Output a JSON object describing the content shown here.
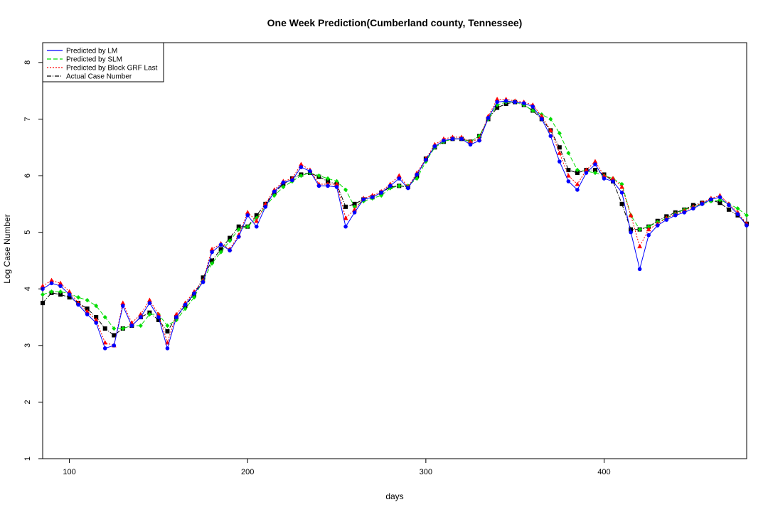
{
  "chart_data": {
    "type": "line",
    "title": "One Week Prediction(Cumberland county, Tennessee)",
    "xlabel": "days",
    "ylabel": "Log Case Number",
    "xlim": [
      85,
      480
    ],
    "ylim": [
      1,
      8.35
    ],
    "x_ticks": [
      "100",
      "200",
      "300",
      "400"
    ],
    "y_ticks": [
      "1",
      "2",
      "3",
      "4",
      "5",
      "6",
      "7",
      "8"
    ],
    "grid": false,
    "legend_position": "top-left",
    "legend": [
      {
        "label": "Predicted by LM",
        "color": "#0000ff",
        "style": "solid",
        "marker": "circle"
      },
      {
        "label": "Predicted by SLM",
        "color": "#00dd00",
        "style": "dashed",
        "marker": "diamond"
      },
      {
        "label": "Predicted by Block GRF Last",
        "color": "#ff0000",
        "style": "dotted",
        "marker": "triangle"
      },
      {
        "label": "Actual Case Number",
        "color": "#000000",
        "style": "dashdot",
        "marker": "square"
      }
    ],
    "series": [
      {
        "name": "Actual Case Number",
        "x": [
          85,
          90,
          95,
          100,
          105,
          110,
          115,
          120,
          125,
          130,
          135,
          140,
          145,
          150,
          155,
          160,
          165,
          170,
          175,
          180,
          185,
          190,
          195,
          200,
          205,
          210,
          215,
          220,
          225,
          230,
          235,
          240,
          245,
          250,
          255,
          260,
          265,
          270,
          275,
          280,
          285,
          290,
          295,
          300,
          305,
          310,
          315,
          320,
          325,
          330,
          335,
          340,
          345,
          350,
          355,
          360,
          365,
          370,
          375,
          380,
          385,
          390,
          395,
          400,
          405,
          410,
          415,
          420,
          425,
          430,
          435,
          440,
          445,
          450,
          455,
          460,
          465,
          470,
          475,
          480
        ],
        "values": [
          3.75,
          3.93,
          3.9,
          3.85,
          3.75,
          3.65,
          3.5,
          3.3,
          3.18,
          3.3,
          3.35,
          3.5,
          3.58,
          3.45,
          3.25,
          3.5,
          3.7,
          3.9,
          4.2,
          4.5,
          4.7,
          4.9,
          5.1,
          5.1,
          5.3,
          5.5,
          5.7,
          5.85,
          5.95,
          6.02,
          6.05,
          5.98,
          5.9,
          5.85,
          5.45,
          5.5,
          5.58,
          5.62,
          5.7,
          5.8,
          5.82,
          5.8,
          6.0,
          6.3,
          6.5,
          6.6,
          6.65,
          6.65,
          6.6,
          6.7,
          7.0,
          7.2,
          7.27,
          7.3,
          7.25,
          7.15,
          7.0,
          6.8,
          6.5,
          6.1,
          6.05,
          6.1,
          6.1,
          6.02,
          5.9,
          5.5,
          5.05,
          5.05,
          5.1,
          5.2,
          5.28,
          5.35,
          5.4,
          5.48,
          5.52,
          5.57,
          5.52,
          5.4,
          5.3,
          5.15
        ]
      },
      {
        "name": "Predicted by SLM",
        "x": [
          85,
          90,
          95,
          100,
          105,
          110,
          115,
          120,
          125,
          130,
          135,
          140,
          145,
          150,
          155,
          160,
          165,
          170,
          175,
          180,
          185,
          190,
          195,
          200,
          205,
          210,
          215,
          220,
          225,
          230,
          235,
          240,
          245,
          250,
          255,
          260,
          265,
          270,
          275,
          280,
          285,
          290,
          295,
          300,
          305,
          310,
          315,
          320,
          325,
          330,
          335,
          340,
          345,
          350,
          355,
          360,
          365,
          370,
          375,
          380,
          385,
          390,
          395,
          400,
          405,
          410,
          415,
          420,
          425,
          430,
          435,
          440,
          445,
          450,
          455,
          460,
          465,
          470,
          475,
          480
        ],
        "values": [
          3.9,
          3.95,
          3.95,
          3.92,
          3.85,
          3.8,
          3.7,
          3.5,
          3.3,
          3.3,
          3.35,
          3.35,
          3.55,
          3.55,
          3.35,
          3.45,
          3.65,
          3.85,
          4.15,
          4.45,
          4.65,
          4.85,
          5.05,
          5.1,
          5.25,
          5.45,
          5.65,
          5.8,
          5.9,
          6.0,
          6.05,
          6.0,
          5.95,
          5.9,
          5.75,
          5.45,
          5.55,
          5.6,
          5.65,
          5.78,
          5.82,
          5.82,
          5.95,
          6.25,
          6.5,
          6.6,
          6.65,
          6.65,
          6.6,
          6.7,
          7.0,
          7.25,
          7.3,
          7.3,
          7.25,
          7.15,
          7.08,
          7.0,
          6.75,
          6.4,
          6.1,
          6.08,
          6.05,
          6.0,
          5.95,
          5.85,
          5.3,
          5.05,
          5.1,
          5.18,
          5.25,
          5.33,
          5.4,
          5.45,
          5.5,
          5.55,
          5.57,
          5.5,
          5.42,
          5.3
        ]
      },
      {
        "name": "Predicted by Block GRF Last",
        "x": [
          85,
          90,
          95,
          100,
          105,
          110,
          115,
          120,
          125,
          130,
          135,
          140,
          145,
          150,
          155,
          160,
          165,
          170,
          175,
          180,
          185,
          190,
          195,
          200,
          205,
          210,
          215,
          220,
          225,
          230,
          235,
          240,
          245,
          250,
          255,
          260,
          265,
          270,
          275,
          280,
          285,
          290,
          295,
          300,
          305,
          310,
          315,
          320,
          325,
          330,
          335,
          340,
          345,
          350,
          355,
          360,
          365,
          370,
          375,
          380,
          385,
          390,
          395,
          400,
          405,
          410,
          415,
          420,
          425,
          430,
          435,
          440,
          445,
          450,
          455,
          460,
          465,
          470,
          475,
          480
        ],
        "values": [
          4.05,
          4.15,
          4.1,
          3.95,
          3.75,
          3.6,
          3.45,
          3.05,
          3.0,
          3.75,
          3.4,
          3.55,
          3.8,
          3.55,
          3.05,
          3.55,
          3.75,
          3.95,
          4.15,
          4.7,
          4.8,
          4.7,
          4.95,
          5.35,
          5.2,
          5.5,
          5.75,
          5.9,
          5.95,
          6.2,
          6.1,
          5.85,
          5.85,
          5.85,
          5.25,
          5.4,
          5.6,
          5.65,
          5.72,
          5.85,
          6.0,
          5.8,
          6.05,
          6.3,
          6.55,
          6.65,
          6.68,
          6.68,
          6.6,
          6.65,
          7.05,
          7.35,
          7.35,
          7.32,
          7.3,
          7.25,
          7.05,
          6.8,
          6.4,
          6.0,
          5.85,
          6.1,
          6.25,
          6.0,
          5.95,
          5.8,
          5.3,
          4.75,
          5.05,
          5.15,
          5.25,
          5.32,
          5.38,
          5.45,
          5.52,
          5.6,
          5.65,
          5.5,
          5.35,
          5.15
        ]
      },
      {
        "name": "Predicted by LM",
        "x": [
          85,
          90,
          95,
          100,
          105,
          110,
          115,
          120,
          125,
          130,
          135,
          140,
          145,
          150,
          155,
          160,
          165,
          170,
          175,
          180,
          185,
          190,
          195,
          200,
          205,
          210,
          215,
          220,
          225,
          230,
          235,
          240,
          245,
          250,
          255,
          260,
          265,
          270,
          275,
          280,
          285,
          290,
          295,
          300,
          305,
          310,
          315,
          320,
          325,
          330,
          335,
          340,
          345,
          350,
          355,
          360,
          365,
          370,
          375,
          380,
          385,
          390,
          395,
          400,
          405,
          410,
          415,
          420,
          425,
          430,
          435,
          440,
          445,
          450,
          455,
          460,
          465,
          470,
          475,
          480
        ],
        "values": [
          4.0,
          4.1,
          4.05,
          3.9,
          3.72,
          3.55,
          3.4,
          2.95,
          3.0,
          3.7,
          3.35,
          3.5,
          3.75,
          3.5,
          2.95,
          3.5,
          3.72,
          3.92,
          4.12,
          4.65,
          4.78,
          4.68,
          4.92,
          5.3,
          5.1,
          5.45,
          5.72,
          5.88,
          5.92,
          6.15,
          6.08,
          5.82,
          5.82,
          5.8,
          5.1,
          5.35,
          5.58,
          5.62,
          5.7,
          5.82,
          5.95,
          5.78,
          6.02,
          6.28,
          6.52,
          6.62,
          6.65,
          6.65,
          6.55,
          6.62,
          7.02,
          7.3,
          7.32,
          7.3,
          7.28,
          7.22,
          7.0,
          6.7,
          6.25,
          5.9,
          5.75,
          6.05,
          6.2,
          5.95,
          5.9,
          5.7,
          5.0,
          4.35,
          4.95,
          5.12,
          5.22,
          5.3,
          5.35,
          5.42,
          5.5,
          5.58,
          5.62,
          5.48,
          5.32,
          5.12
        ]
      }
    ]
  }
}
